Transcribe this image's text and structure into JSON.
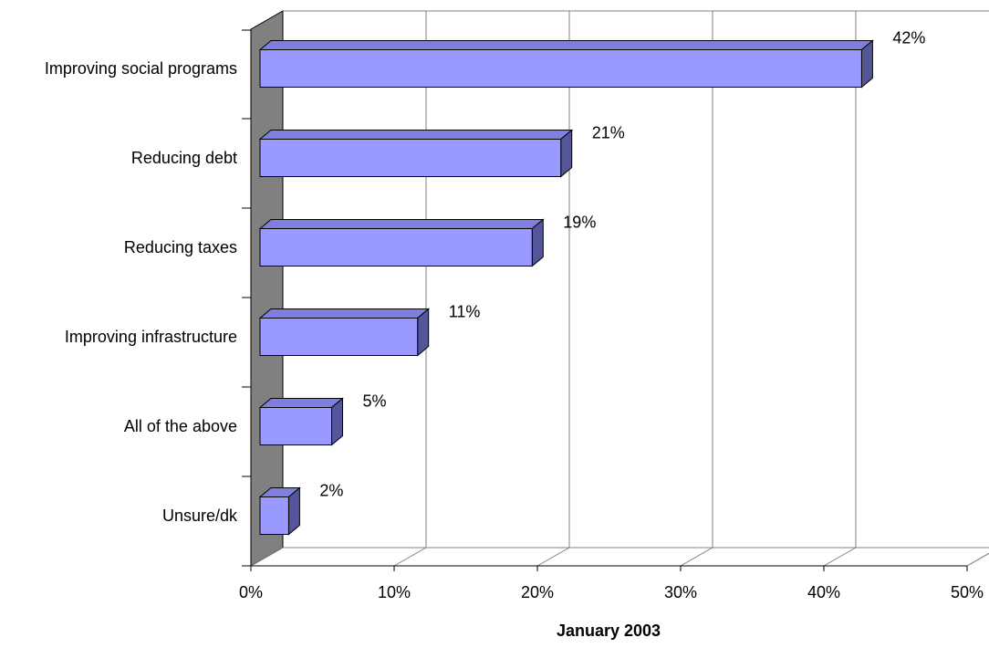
{
  "chart_data": {
    "type": "bar",
    "orientation": "horizontal",
    "three_d": true,
    "categories": [
      "Improving social programs",
      "Reducing debt",
      "Reducing taxes",
      "Improving infrastructure",
      "All of the above",
      "Unsure/dk"
    ],
    "values": [
      42,
      21,
      19,
      11,
      5,
      2
    ],
    "value_labels": [
      "42%",
      "21%",
      "19%",
      "11%",
      "5%",
      "2%"
    ],
    "xlabel": "January 2003",
    "ylabel": "",
    "xlim": [
      0,
      50
    ],
    "x_ticks": [
      0,
      10,
      20,
      30,
      40,
      50
    ],
    "x_tick_labels": [
      "0%",
      "10%",
      "20%",
      "30%",
      "40%",
      "50%"
    ],
    "grid": "vertical",
    "legend": "none",
    "colors": {
      "bar_front": "#9999ff",
      "bar_top": "#7f7fdf",
      "bar_side": "#555599",
      "bar_outline": "#000000",
      "side_wall": "#808080",
      "gridline": "#808080"
    }
  }
}
